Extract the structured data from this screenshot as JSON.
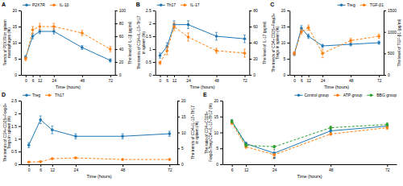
{
  "chart_data": [
    {
      "type": "line",
      "title": "A",
      "x_label": "Time (hours)",
      "y_label": "Trends of P2X7R in spleen\nmacrophages (%)",
      "y2_label": "The level of IL-1β (pg/ml)",
      "x": [
        0,
        6,
        12,
        24,
        48,
        72
      ],
      "xlim": [
        -4,
        76
      ],
      "xticks": [
        0,
        6,
        12,
        24,
        48,
        72
      ],
      "ylim": [
        0,
        20
      ],
      "yticks": [
        0,
        5,
        10,
        15,
        20
      ],
      "y2lim": [
        0,
        100
      ],
      "y2ticks": [
        0,
        20,
        40,
        60,
        80,
        100
      ],
      "legend": "upper left",
      "grid": false,
      "series": [
        {
          "name": "P2X7R",
          "values": [
            5.5,
            12.0,
            13.5,
            13.5,
            8.5,
            4.5
          ],
          "errors": [
            0.5,
            0.8,
            0.7,
            0.8,
            0.6,
            0.5
          ],
          "marker": "circle",
          "line_style": "solid"
        },
        {
          "name": "IL-1β",
          "axis": "y2",
          "values": [
            25,
            70,
            75,
            75,
            65,
            40
          ],
          "errors": [
            3,
            5,
            5,
            5,
            4,
            4
          ],
          "marker": "circle",
          "line_style": "dashed"
        }
      ]
    },
    {
      "type": "line",
      "title": "B",
      "x_label": "Time (hours)",
      "y_label": "The trends of CD4+IL-17+Th17\nin spleen (%)",
      "y2_label": "The level of IL-17 (pg/ml)",
      "x": [
        0,
        6,
        12,
        24,
        48,
        72
      ],
      "xlim": [
        -4,
        76
      ],
      "xticks": [
        0,
        6,
        12,
        24,
        48,
        72
      ],
      "ylim": [
        0,
        2.5
      ],
      "yticks": [
        0,
        0.5,
        1,
        1.5,
        2,
        2.5
      ],
      "y2lim": [
        0,
        80
      ],
      "y2ticks": [
        0,
        20,
        40,
        60,
        80
      ],
      "legend": "upper left",
      "grid": false,
      "series": [
        {
          "name": "Th17",
          "values": [
            0.75,
            1.1,
            1.95,
            1.95,
            1.5,
            1.4
          ],
          "errors": [
            0.1,
            0.15,
            0.15,
            0.15,
            0.15,
            0.15
          ],
          "marker": "circle",
          "line_style": "solid"
        },
        {
          "name": "IL-17",
          "axis": "y2",
          "values": [
            15,
            30,
            60,
            47,
            30,
            27
          ],
          "errors": [
            2,
            5,
            5,
            5,
            3,
            5
          ],
          "marker": "circle",
          "line_style": "dashed"
        }
      ]
    },
    {
      "type": "line",
      "title": "C",
      "x_label": "Time (hours)",
      "y_label": "The trends of CD4+CD25+Foxp3+\nTregs in spleen (%)",
      "y2_label": "The level of TGF-β1 (pg/ml)",
      "x": [
        0,
        6,
        12,
        24,
        48,
        72
      ],
      "xlim": [
        -4,
        76
      ],
      "xticks": [
        0,
        6,
        12,
        24,
        48,
        72
      ],
      "ylim": [
        0,
        20
      ],
      "yticks": [
        0,
        5,
        10,
        15,
        20
      ],
      "y2lim": [
        0,
        1500
      ],
      "y2ticks": [
        0,
        500,
        1000,
        1500
      ],
      "legend": "upper right",
      "grid": false,
      "series": [
        {
          "name": "Treg",
          "values": [
            6.5,
            14.5,
            12.0,
            9.0,
            9.5,
            10.0
          ],
          "errors": [
            0.5,
            0.8,
            0.7,
            0.5,
            0.5,
            0.5
          ],
          "marker": "circle",
          "line_style": "solid"
        },
        {
          "name": "TGF-β1",
          "axis": "y2",
          "values": [
            500,
            1000,
            1100,
            500,
            800,
            900
          ],
          "errors": [
            40,
            60,
            60,
            100,
            50,
            50
          ],
          "marker": "circle",
          "line_style": "dashed"
        }
      ]
    },
    {
      "type": "line",
      "title": "D",
      "x_label": "Time (hours)",
      "y_label": "The trends of CD4+CD25+Foxp3+\nTregs in spleen (%)",
      "y2_label": "The trends of CD4+IL-17+Th17\nin spleen (%)",
      "x": [
        0,
        6,
        12,
        24,
        48,
        72
      ],
      "xlim": [
        -4,
        76
      ],
      "xticks": [
        0,
        6,
        12,
        24,
        48,
        72
      ],
      "ylim": [
        0,
        2.5
      ],
      "yticks": [
        0,
        0.5,
        1,
        1.5,
        2,
        2.5
      ],
      "y2lim": [
        0,
        20
      ],
      "y2ticks": [
        0,
        5,
        10,
        15,
        20
      ],
      "legend": "upper left",
      "grid": false,
      "series": [
        {
          "name": "Treg",
          "values": [
            0.75,
            1.75,
            1.35,
            1.1,
            1.1,
            1.2
          ],
          "errors": [
            0.1,
            0.15,
            0.15,
            0.1,
            0.1,
            0.1
          ],
          "marker": "circle",
          "line_style": "solid"
        },
        {
          "name": "Th17",
          "axis": "y2",
          "values": [
            0.7,
            0.8,
            1.75,
            2.0,
            1.5,
            1.5
          ],
          "errors": [
            0.1,
            0.1,
            0.2,
            0.2,
            0.15,
            0.15
          ],
          "marker": "circle",
          "line_style": "dashed"
        }
      ]
    },
    {
      "type": "line",
      "title": "E",
      "x_label": "Time (hours)",
      "y_label": "The ratio of CD4+CD25+\nFoxp3+Treg/CD4+IL-17+Th17 (%)",
      "x": [
        6,
        12,
        24,
        48,
        72
      ],
      "xlim": [
        2,
        76
      ],
      "xticks": [
        6,
        12,
        24,
        48,
        72
      ],
      "ylim": [
        0,
        20
      ],
      "yticks": [
        0,
        5,
        10,
        15,
        20
      ],
      "legend": "upper right",
      "grid": false,
      "series": [
        {
          "name": "Control group",
          "values": [
            13.5,
            6.5,
            3.5,
            10.5,
            12.0
          ],
          "errors": [
            0.5,
            0.5,
            0.4,
            0.5,
            0.5
          ],
          "marker": "circle",
          "line_style": "solid"
        },
        {
          "name": "ATP group",
          "values": [
            13.0,
            5.5,
            3.0,
            9.5,
            11.5
          ],
          "errors": [
            0.5,
            0.5,
            0.3,
            0.4,
            0.5
          ],
          "marker": "circle",
          "line_style": "dashed"
        },
        {
          "name": "BBG group",
          "values": [
            13.5,
            6.0,
            5.5,
            11.5,
            12.5
          ],
          "errors": [
            0.5,
            0.5,
            0.4,
            0.5,
            0.5
          ],
          "marker": "circle",
          "line_style": "dashed"
        }
      ],
      "annotations": [
        {
          "text": "*",
          "x": 24,
          "y": 3.8
        },
        {
          "text": "#",
          "x": 24,
          "y": 1.5
        }
      ]
    }
  ]
}
